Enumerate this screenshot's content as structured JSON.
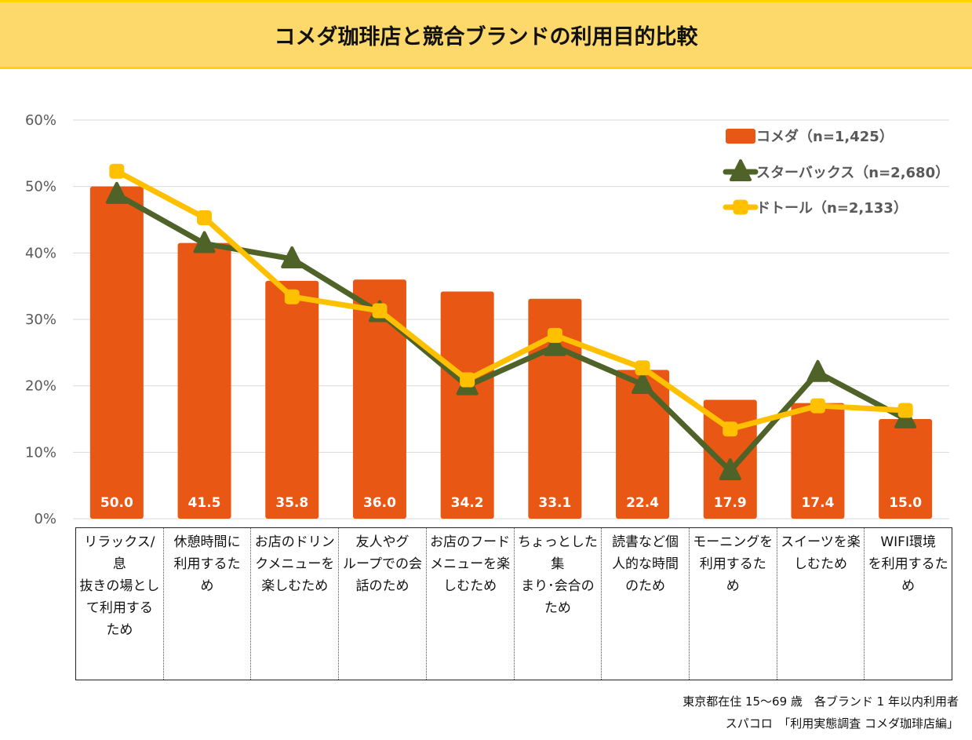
{
  "title": "コメダ珈琲店と競合ブランドの利用目的比較",
  "colors": {
    "komeda": "#E85713",
    "starbucks": "#4F6228",
    "doutor": "#FFC000",
    "title_bg": "#FDD96B",
    "grid": "#D9D9D9"
  },
  "chart_data": {
    "type": "bar",
    "title": "コメダ珈琲店と競合ブランドの利用目的比較",
    "xlabel": "",
    "ylabel": "",
    "ylim": [
      0,
      60
    ],
    "yticks": [
      "0%",
      "10%",
      "20%",
      "30%",
      "40%",
      "50%",
      "60%"
    ],
    "ytick_values": [
      0,
      10,
      20,
      30,
      40,
      50,
      60
    ],
    "grid": true,
    "legend_position": "top-right",
    "categories": [
      "リラックス/息抜きの場として利用するため",
      "休憩時間に利用するため",
      "お店のドリンクメニューを楽しむため",
      "友人やグループでの会話のため",
      "お店のフードメニューを楽しむため",
      "ちょっとした集まり・会合のため",
      "読書など個人的な時間のため",
      "モーニングを利用するため",
      "スイーツを楽しむため",
      "WIFI環境を利用するため"
    ],
    "category_lines": [
      [
        "リラックス/息",
        "抜きの場とし",
        "て利用する",
        "ため"
      ],
      [
        "休憩時間に",
        "利用するた",
        "め"
      ],
      [
        "お店のドリン",
        "クメニューを",
        "楽しむため"
      ],
      [
        "友人やグ",
        "ループでの会",
        "話のため"
      ],
      [
        "お店のフード",
        "メニューを楽",
        "しむため"
      ],
      [
        "ちょっとした集",
        "まり･会合の",
        "ため"
      ],
      [
        "読書など個",
        "人的な時間",
        "のため"
      ],
      [
        "モーニングを",
        "利用するた",
        "め"
      ],
      [
        "スイーツを楽",
        "しむため"
      ],
      [
        "WIFI環境",
        "を利用するた",
        "め"
      ]
    ],
    "series": [
      {
        "name": "コメダ（n=1,425）",
        "type": "bar",
        "color": "#E85713",
        "values": [
          50.0,
          41.5,
          35.8,
          36.0,
          34.2,
          33.1,
          22.4,
          17.9,
          17.4,
          15.0
        ],
        "data_labels": [
          "50.0",
          "41.5",
          "35.8",
          "36.0",
          "34.2",
          "33.1",
          "22.4",
          "17.9",
          "17.4",
          "15.0"
        ]
      },
      {
        "name": "スターバックス（n=2,680）",
        "type": "line",
        "marker": "triangle",
        "color": "#4F6228",
        "values": [
          48.8,
          41.4,
          39.1,
          31.0,
          20.0,
          25.9,
          20.2,
          7.2,
          22.0,
          15.0
        ]
      },
      {
        "name": "ドトール（n=2,133）",
        "type": "line",
        "marker": "square",
        "color": "#FFC000",
        "values": [
          52.3,
          45.3,
          33.4,
          31.3,
          20.9,
          27.6,
          22.7,
          13.5,
          17.0,
          16.3
        ]
      }
    ]
  },
  "source": {
    "line1": "東京都在住 15～69 歳　各ブランド 1 年以内利用者",
    "line2": "スパコロ　「利用実態調査 コメダ珈琲店編」"
  }
}
